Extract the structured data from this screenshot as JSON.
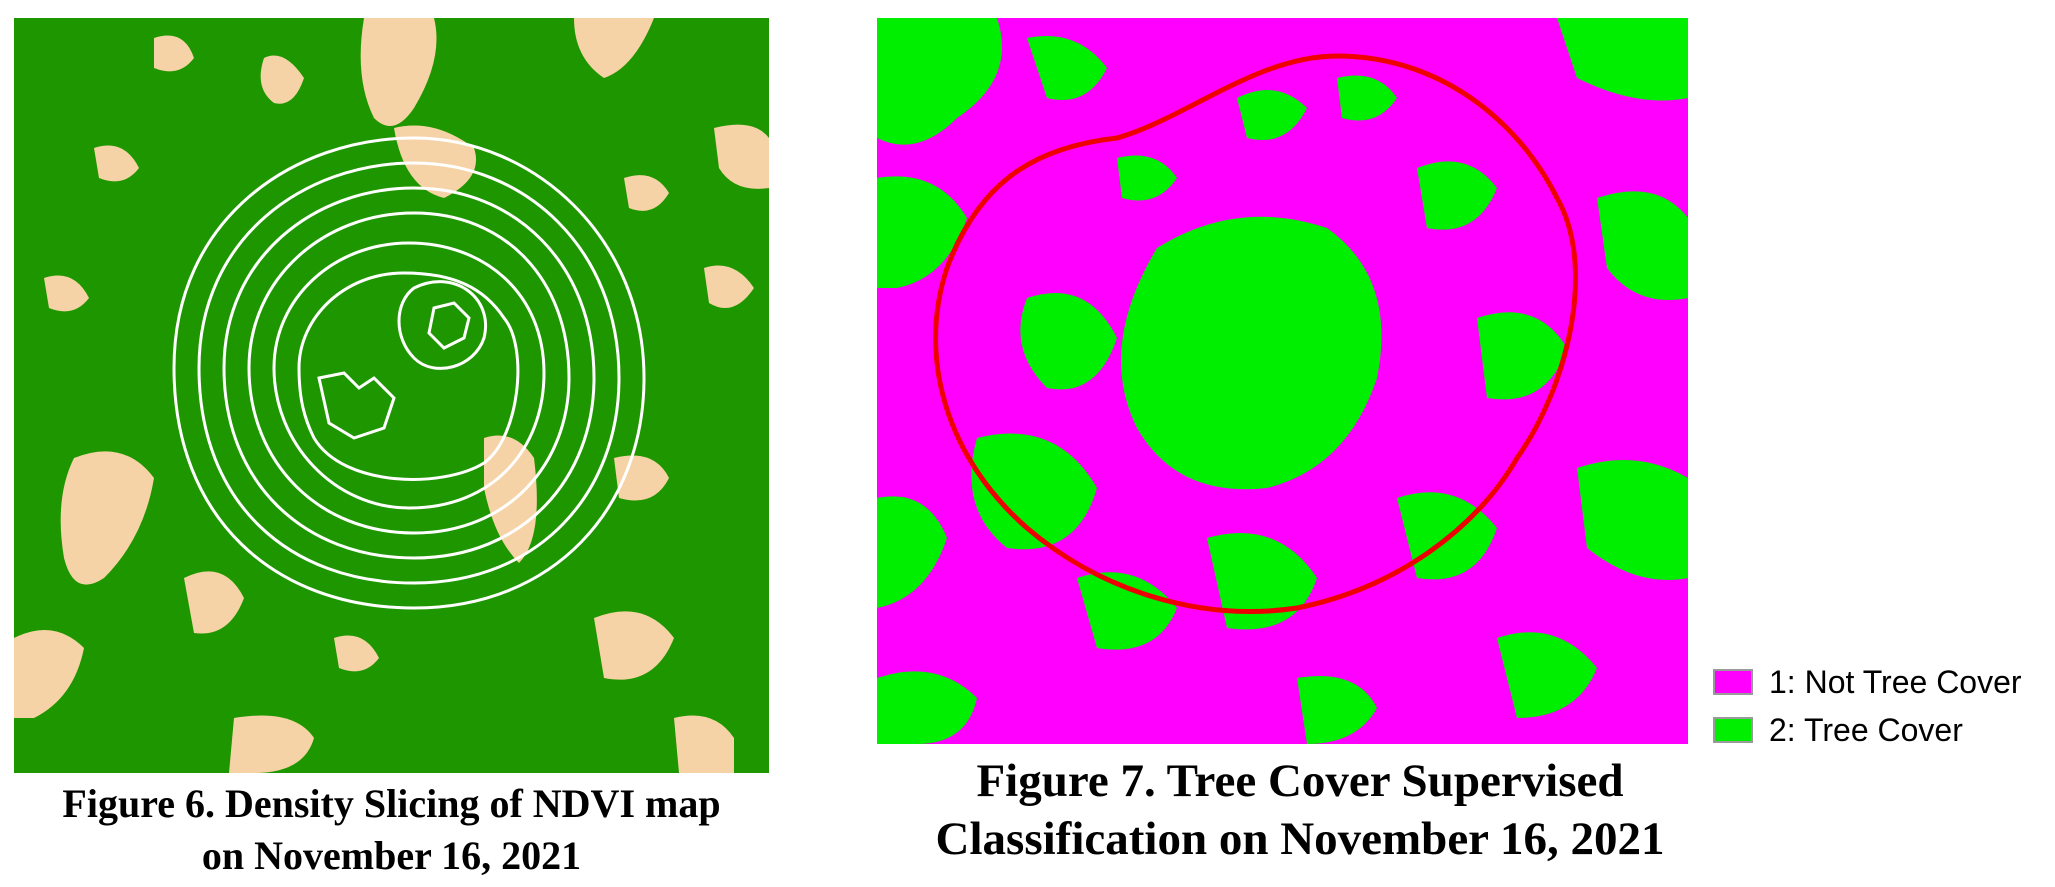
{
  "figure6": {
    "caption_line1": "Figure 6. Density Slicing of NDVI map",
    "caption_line2": "on November 16, 2021",
    "colors": {
      "vegetation": "#1e9600",
      "non_vegetation": "#f6d3a6",
      "contours": "#ffffff"
    }
  },
  "figure7": {
    "caption_line1": "Figure 7. Tree Cover Supervised",
    "caption_line2": "Classification on November 16, 2021",
    "colors": {
      "not_tree_cover": "#ff00ff",
      "tree_cover": "#00ee00",
      "boundary": "#ee0000"
    },
    "legend": [
      {
        "label": "1: Not Tree Cover",
        "color": "#ff00ff"
      },
      {
        "label": "2: Tree Cover",
        "color": "#00ee00"
      }
    ]
  }
}
